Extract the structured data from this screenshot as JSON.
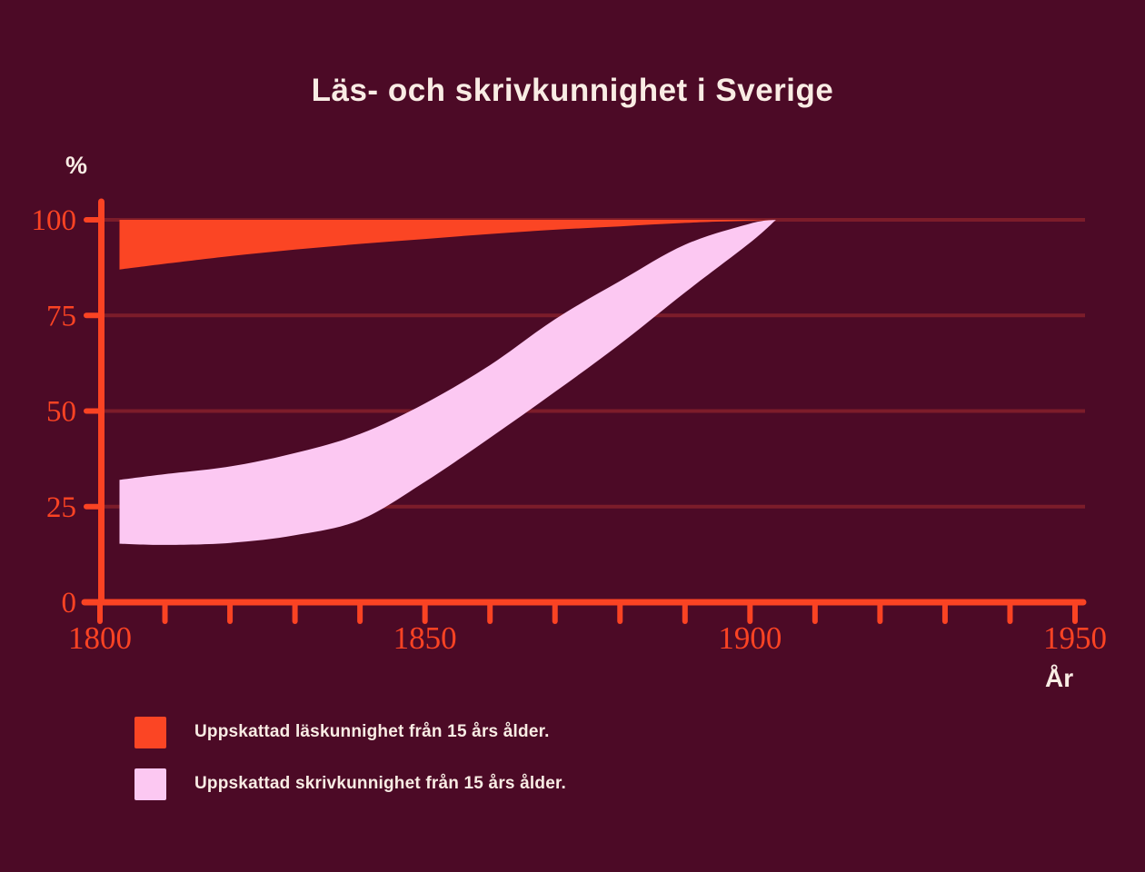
{
  "chart_data": {
    "type": "area",
    "title": "Läs- och skrivkunnighet i Sverige",
    "xlabel": "År",
    "ylabel": "%",
    "xlim": [
      1800,
      1950
    ],
    "ylim": [
      0,
      100
    ],
    "grid": "horizontal",
    "legend_position": "bottom-left",
    "x_tick_interval": 10,
    "x_tick_labels": [
      "1800",
      "1850",
      "1900",
      "1950"
    ],
    "y_ticks": [
      0,
      25,
      50,
      75,
      100
    ],
    "colors": {
      "background": "#4c0a26",
      "axis": "#fa4323",
      "grid": "#7c1c2a",
      "text": "#f9ece4"
    },
    "series": [
      {
        "name": "Uppskattad läskunnighet från 15 års ålder.",
        "color": "#fb4524",
        "band": "upper-lower",
        "years": [
          1803,
          1810,
          1820,
          1830,
          1840,
          1850,
          1860,
          1870,
          1880,
          1890,
          1900,
          1904
        ],
        "upper": [
          100,
          100,
          100,
          100,
          100,
          100,
          100,
          100,
          100,
          100,
          100,
          100
        ],
        "lower": [
          87,
          88.5,
          90.5,
          92.2,
          93.7,
          95,
          96.3,
          97.4,
          98.3,
          99.2,
          99.8,
          100
        ]
      },
      {
        "name": "Uppskattad skrivkunnighet från 15 års ålder.",
        "color": "#fcc8f2",
        "band": "upper-lower",
        "years": [
          1803,
          1810,
          1820,
          1830,
          1840,
          1850,
          1860,
          1870,
          1880,
          1890,
          1900,
          1904
        ],
        "upper": [
          32,
          33.5,
          35.5,
          39,
          44,
          52,
          62,
          74,
          84,
          93.5,
          99,
          100
        ],
        "lower": [
          15.3,
          15,
          15.5,
          17.5,
          21.5,
          31.5,
          43,
          55,
          67.5,
          81,
          94,
          100
        ]
      }
    ]
  }
}
